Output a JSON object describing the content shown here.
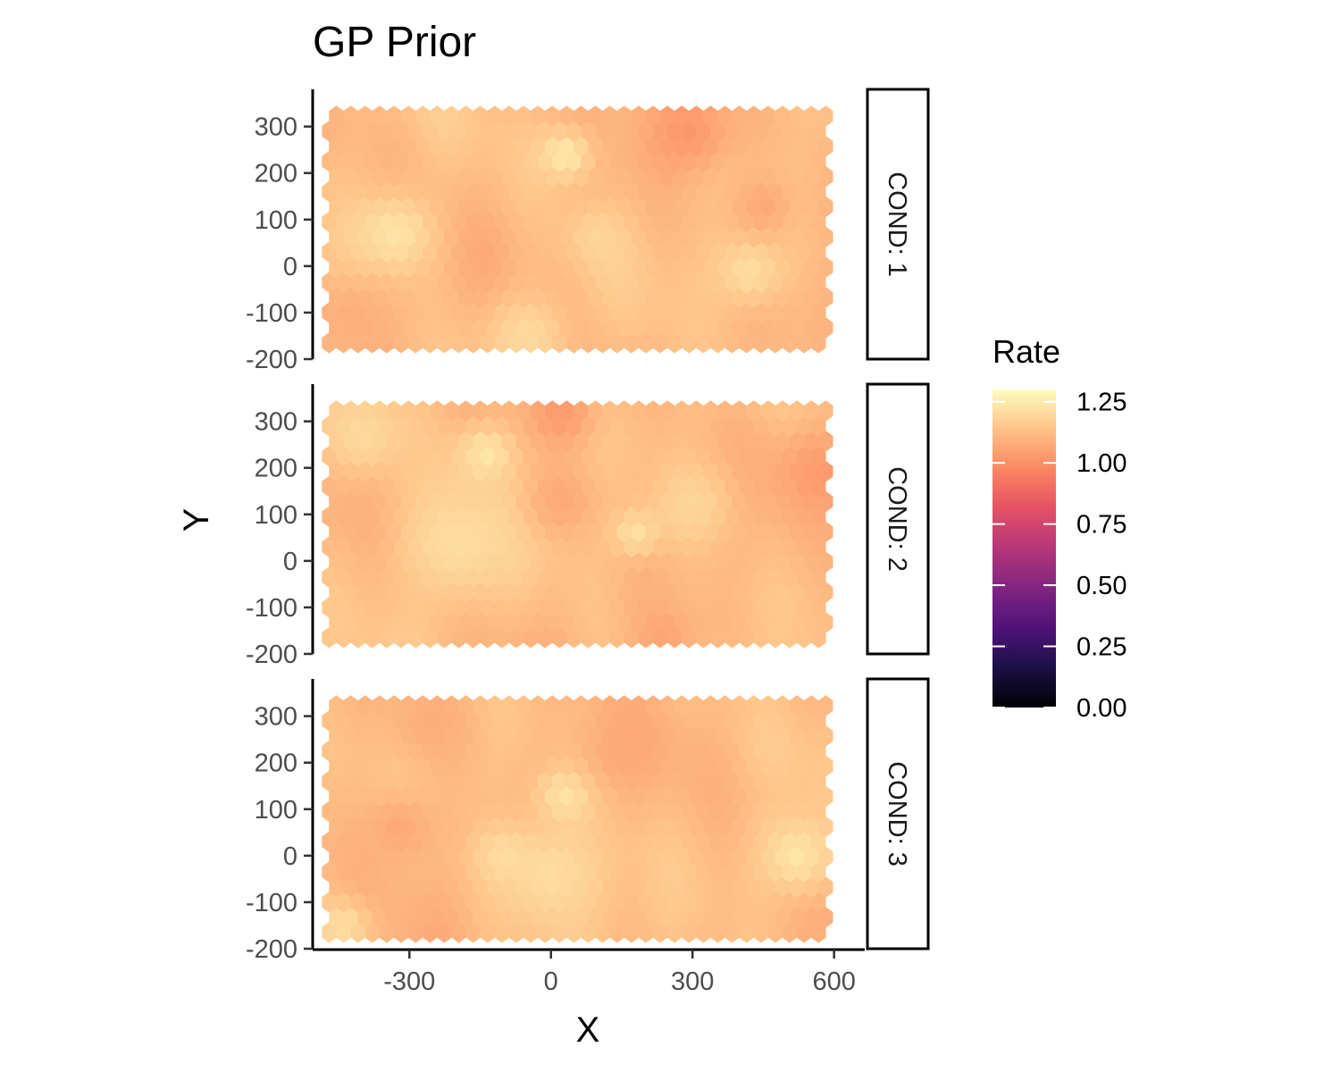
{
  "chart_data": {
    "type": "heatmap",
    "subtype": "hexbin-faceted",
    "title": "GP Prior",
    "xlabel": "X",
    "ylabel": "Y",
    "xlim": [
      -505,
      665
    ],
    "ylim": [
      -200,
      380
    ],
    "x_ticks": [
      -300,
      0,
      300,
      600
    ],
    "y_ticks": [
      -200,
      -100,
      0,
      100,
      200,
      300
    ],
    "x_tick_labels": [
      "-300",
      "0",
      "300",
      "600"
    ],
    "y_tick_labels": [
      "-200",
      "-100",
      "0",
      "100",
      "200",
      "300"
    ],
    "legend": {
      "title": "Rate",
      "placement": "right",
      "range": [
        0,
        1.3
      ],
      "breaks": [
        1.25,
        1.0,
        0.75,
        0.5,
        0.25,
        0.0
      ],
      "break_labels": [
        "1.25",
        "1.00",
        "0.75",
        "0.50",
        "0.25",
        "0.00"
      ],
      "palette": "magma",
      "colors": [
        "#000004",
        "#1c1044",
        "#4f127b",
        "#812581",
        "#b5367a",
        "#e55064",
        "#fb8761",
        "#fec287",
        "#fcfdbf"
      ]
    },
    "hex_grid": {
      "x_start": -470,
      "x_end": 595,
      "x_step": 30.5,
      "y_start": -165,
      "y_end": 330,
      "y_step": 32.5
    },
    "facets": [
      {
        "label": "COND: 1",
        "value_range": [
          1.0,
          1.25
        ],
        "hotspots": [
          {
            "x": 290,
            "y": 290,
            "value": 1.02,
            "radius": 90
          },
          {
            "x": 30,
            "y": 240,
            "value": 1.24,
            "radius": 60
          },
          {
            "x": -330,
            "y": 70,
            "value": 1.23,
            "radius": 90
          },
          {
            "x": 420,
            "y": -10,
            "value": 1.21,
            "radius": 80
          },
          {
            "x": -50,
            "y": -150,
            "value": 1.2,
            "radius": 90
          },
          {
            "x": -420,
            "y": -110,
            "value": 1.08,
            "radius": 70
          },
          {
            "x": 450,
            "y": 130,
            "value": 1.07,
            "radius": 60
          },
          {
            "x": 100,
            "y": 60,
            "value": 1.19,
            "radius": 60
          }
        ]
      },
      {
        "label": "COND: 2",
        "value_range": [
          1.0,
          1.25
        ],
        "hotspots": [
          {
            "x": -140,
            "y": 230,
            "value": 1.24,
            "radius": 60
          },
          {
            "x": -200,
            "y": 40,
            "value": 1.21,
            "radius": 140
          },
          {
            "x": -400,
            "y": 270,
            "value": 1.2,
            "radius": 90
          },
          {
            "x": 20,
            "y": 320,
            "value": 1.03,
            "radius": 70
          },
          {
            "x": 20,
            "y": 130,
            "value": 1.07,
            "radius": 70
          },
          {
            "x": 570,
            "y": 190,
            "value": 1.03,
            "radius": 90
          },
          {
            "x": 300,
            "y": 120,
            "value": 1.19,
            "radius": 90
          },
          {
            "x": 180,
            "y": 60,
            "value": 1.22,
            "radius": 50
          },
          {
            "x": 240,
            "y": -160,
            "value": 1.06,
            "radius": 70
          }
        ]
      },
      {
        "label": "COND: 3",
        "value_range": [
          1.0,
          1.25
        ],
        "hotspots": [
          {
            "x": 30,
            "y": 130,
            "value": 1.23,
            "radius": 60
          },
          {
            "x": 0,
            "y": -40,
            "value": 1.21,
            "radius": 120
          },
          {
            "x": 520,
            "y": 0,
            "value": 1.23,
            "radius": 90
          },
          {
            "x": -100,
            "y": 0,
            "value": 1.21,
            "radius": 60
          },
          {
            "x": -320,
            "y": 60,
            "value": 1.07,
            "radius": 80
          },
          {
            "x": 150,
            "y": 230,
            "value": 1.07,
            "radius": 80
          },
          {
            "x": -250,
            "y": 290,
            "value": 1.08,
            "radius": 90
          },
          {
            "x": -440,
            "y": -150,
            "value": 1.21,
            "radius": 60
          }
        ]
      }
    ]
  }
}
